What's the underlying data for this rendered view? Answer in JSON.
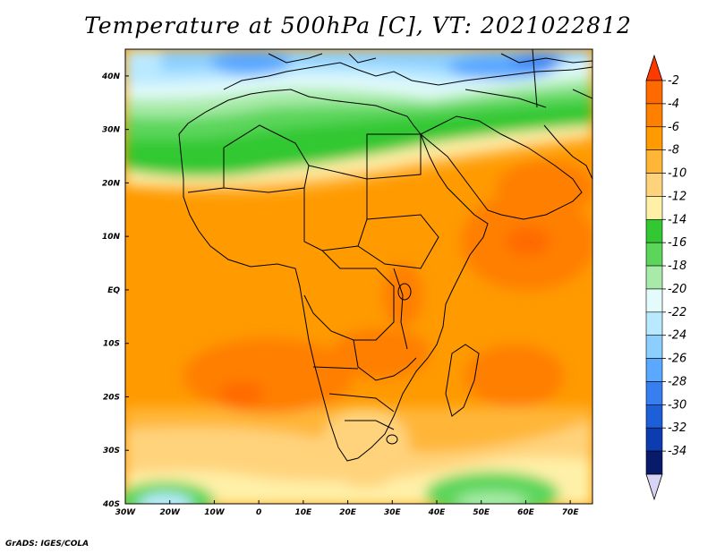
{
  "title": "Temperature at 500hPa [C], VT: 2021022812",
  "credit": "GrADS: IGES/COLA",
  "map": {
    "projection": "latlon",
    "lon_range": [
      -30,
      75
    ],
    "lat_range": [
      -40,
      45
    ],
    "lon_ticks": [
      {
        "v": -30,
        "label": "30W"
      },
      {
        "v": -20,
        "label": "20W"
      },
      {
        "v": -10,
        "label": "10W"
      },
      {
        "v": 0,
        "label": "0"
      },
      {
        "v": 10,
        "label": "10E"
      },
      {
        "v": 20,
        "label": "20E"
      },
      {
        "v": 30,
        "label": "30E"
      },
      {
        "v": 40,
        "label": "40E"
      },
      {
        "v": 50,
        "label": "50E"
      },
      {
        "v": 60,
        "label": "60E"
      },
      {
        "v": 70,
        "label": "70E"
      }
    ],
    "lat_ticks": [
      {
        "v": 40,
        "label": "40N"
      },
      {
        "v": 30,
        "label": "30N"
      },
      {
        "v": 20,
        "label": "20N"
      },
      {
        "v": 10,
        "label": "10N"
      },
      {
        "v": 0,
        "label": "EQ"
      },
      {
        "v": -10,
        "label": "10S"
      },
      {
        "v": -20,
        "label": "20S"
      },
      {
        "v": -30,
        "label": "30S"
      },
      {
        "v": -40,
        "label": "40S"
      }
    ]
  },
  "colorbar": {
    "levels": [
      {
        "label": "-2",
        "color": "#ff6a00"
      },
      {
        "label": "-4",
        "color": "#ff7f00"
      },
      {
        "label": "-6",
        "color": "#ff9a00"
      },
      {
        "label": "-8",
        "color": "#ffb637"
      },
      {
        "label": "-10",
        "color": "#ffd37b"
      },
      {
        "label": "-12",
        "color": "#fff0a8"
      },
      {
        "label": "-14",
        "color": "#32c832"
      },
      {
        "label": "-16",
        "color": "#5bd65b"
      },
      {
        "label": "-18",
        "color": "#a8eba8"
      },
      {
        "label": "-20",
        "color": "#e3fbfb"
      },
      {
        "label": "-22",
        "color": "#b9e9ff"
      },
      {
        "label": "-24",
        "color": "#8ccfff"
      },
      {
        "label": "-26",
        "color": "#5aa8ff"
      },
      {
        "label": "-28",
        "color": "#377ff0"
      },
      {
        "label": "-30",
        "color": "#1c5fd8"
      },
      {
        "label": "-32",
        "color": "#0c3cb0"
      },
      {
        "label": "-34",
        "color": "#081a6a"
      }
    ],
    "top_arrow_color": "#ff3a00",
    "bottom_arrow_color": "#d8d4f4"
  }
}
